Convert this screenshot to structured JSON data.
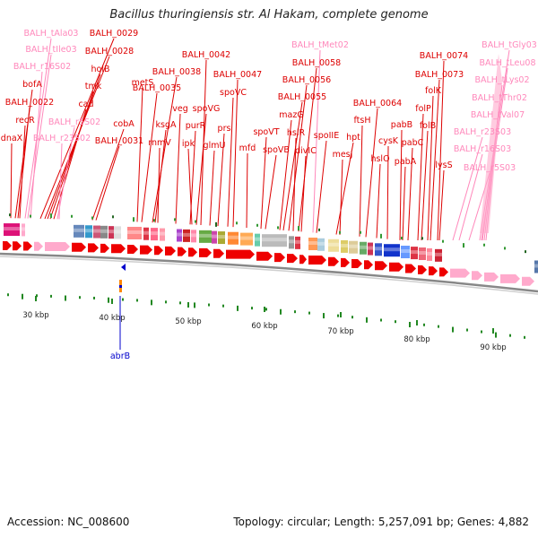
{
  "title": "Bacillus thuringiensis str. Al Hakam, complete genome",
  "footer": {
    "accession": "Accession: NC_008600",
    "topology": "Topology: circular; Length: 5,257,091 bp; Genes: 4,882"
  },
  "colors": {
    "gene": "#dd0000",
    "rna": "#ff88bb",
    "backbone": "#999999"
  },
  "genes_top": [
    {
      "label": "BALH_tAla03",
      "type": "rna"
    },
    {
      "label": "BALH_0029",
      "type": "gene"
    },
    {
      "label": "BALH_tIle03",
      "type": "rna"
    },
    {
      "label": "BALH_0028",
      "type": "gene"
    },
    {
      "label": "BALH_r16S02",
      "type": "rna"
    },
    {
      "label": "holB",
      "type": "gene"
    },
    {
      "label": "bofA",
      "type": "gene"
    },
    {
      "label": "tmk",
      "type": "gene"
    },
    {
      "label": "BALH_0022",
      "type": "gene"
    },
    {
      "label": "cad",
      "type": "gene"
    },
    {
      "label": "recR",
      "type": "gene"
    },
    {
      "label": "BALH_r5S02",
      "type": "rna"
    },
    {
      "label": "dnaX",
      "type": "gene"
    },
    {
      "label": "BALH_r23S02",
      "type": "rna"
    },
    {
      "label": "cobA",
      "type": "gene"
    },
    {
      "label": "BALH_0031",
      "type": "gene"
    },
    {
      "label": "metS",
      "type": "gene"
    },
    {
      "label": "BALH_0035",
      "type": "gene"
    },
    {
      "label": "BALH_0038",
      "type": "gene"
    },
    {
      "label": "ksgA",
      "type": "gene"
    },
    {
      "label": "rnmV",
      "type": "gene"
    },
    {
      "label": "BALH_0042",
      "type": "gene"
    },
    {
      "label": "veg",
      "type": "gene"
    },
    {
      "label": "spoVG",
      "type": "gene"
    },
    {
      "label": "purR",
      "type": "gene"
    },
    {
      "label": "ipk",
      "type": "gene"
    },
    {
      "label": "glmU",
      "type": "gene"
    },
    {
      "label": "BALH_0047",
      "type": "gene"
    },
    {
      "label": "spoVC",
      "type": "gene"
    },
    {
      "label": "prs",
      "type": "gene"
    },
    {
      "label": "mfd",
      "type": "gene"
    },
    {
      "label": "spoVT",
      "type": "gene"
    },
    {
      "label": "spoVB",
      "type": "gene"
    },
    {
      "label": "BALH_tMet02",
      "type": "rna"
    },
    {
      "label": "BALH_0058",
      "type": "gene"
    },
    {
      "label": "BALH_0056",
      "type": "gene"
    },
    {
      "label": "BALH_0055",
      "type": "gene"
    },
    {
      "label": "mazG",
      "type": "gene"
    },
    {
      "label": "hslR",
      "type": "gene"
    },
    {
      "label": "divIC",
      "type": "gene"
    },
    {
      "label": "spoIIE",
      "type": "gene"
    },
    {
      "label": "hpt",
      "type": "gene"
    },
    {
      "label": "mesJ",
      "type": "gene"
    },
    {
      "label": "BALH_0064",
      "type": "gene"
    },
    {
      "label": "ftsH",
      "type": "gene"
    },
    {
      "label": "hslO",
      "type": "gene"
    },
    {
      "label": "cysK",
      "type": "gene"
    },
    {
      "label": "pabB",
      "type": "gene"
    },
    {
      "label": "pabA",
      "type": "gene"
    },
    {
      "label": "pabC",
      "type": "gene"
    },
    {
      "label": "BALH_0074",
      "type": "gene"
    },
    {
      "label": "BALH_0073",
      "type": "gene"
    },
    {
      "label": "folK",
      "type": "gene"
    },
    {
      "label": "folP",
      "type": "gene"
    },
    {
      "label": "folB",
      "type": "gene"
    },
    {
      "label": "lysS",
      "type": "gene"
    },
    {
      "label": "BALH_r23S03",
      "type": "rna"
    },
    {
      "label": "BALH_r16S03",
      "type": "rna"
    },
    {
      "label": "BALH_r5S03",
      "type": "rna"
    },
    {
      "label": "BALH_tGly03",
      "type": "rna"
    },
    {
      "label": "BALH_tLeu08",
      "type": "rna"
    },
    {
      "label": "BALH_tLys02",
      "type": "rna"
    },
    {
      "label": "BALH_tThr02",
      "type": "rna"
    },
    {
      "label": "BALH_tVal07",
      "type": "rna"
    }
  ],
  "gene_bottom": {
    "label": "abrB"
  },
  "ruler": [
    "30 kbp",
    "40 kbp",
    "50 kbp",
    "60 kbp",
    "70 kbp",
    "80 kbp",
    "90 kbp"
  ]
}
